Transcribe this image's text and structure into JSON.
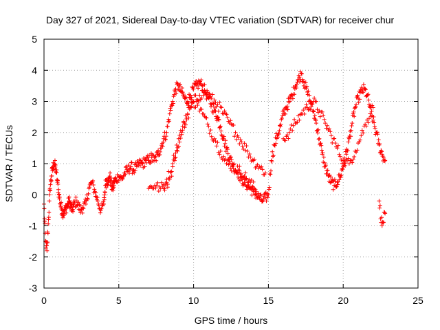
{
  "chart_data": {
    "type": "scatter",
    "title": "Day 327 of 2021, Sidereal Day-to-day VTEC variation (SDTVAR) for receiver chur",
    "xlabel": "GPS time / hours",
    "ylabel": "SDTVAR / TECUs",
    "xlim": [
      0,
      25
    ],
    "ylim": [
      -3,
      5
    ],
    "xticks": [
      0,
      5,
      10,
      15,
      20,
      25
    ],
    "yticks": [
      -3,
      -2,
      -1,
      0,
      1,
      2,
      3,
      4,
      5
    ],
    "grid": true,
    "marker": "+",
    "color": "#ff0000",
    "series": [
      {
        "name": "SDTVAR",
        "branches": [
          {
            "x": [
              0.0,
              0.1,
              0.2,
              0.3,
              0.4,
              0.5,
              0.6,
              0.7,
              0.8,
              0.9,
              1.0,
              1.1,
              1.2,
              1.3,
              1.4,
              1.5,
              1.6,
              1.7,
              1.8,
              1.9,
              2.0,
              2.2,
              2.4,
              2.6,
              2.8,
              3.0,
              3.2,
              3.4,
              3.6,
              3.8,
              4.0,
              4.1,
              4.2,
              4.3,
              4.4,
              4.5,
              4.6,
              4.7,
              4.8,
              5.0,
              5.2,
              5.4,
              5.6,
              5.8,
              6.0,
              6.2,
              6.4,
              6.6,
              6.8,
              7.0,
              7.2,
              7.4,
              7.6,
              7.8,
              8.0,
              8.2,
              8.4,
              8.6,
              8.8,
              9.0,
              9.2,
              9.4,
              9.6,
              9.8,
              10.0,
              10.2,
              10.4,
              10.6,
              10.8,
              11.0,
              11.2,
              11.4,
              11.6,
              11.8,
              12.0,
              12.2,
              12.4,
              12.6,
              12.8,
              13.0,
              13.2,
              13.4,
              13.6,
              13.8,
              14.0,
              14.2,
              14.4,
              14.6,
              14.8,
              15.0,
              15.2,
              15.4,
              15.6,
              15.8,
              16.0,
              16.2,
              16.4,
              16.6,
              16.8,
              17.0,
              17.2,
              17.4,
              17.6,
              17.8,
              18.0,
              18.2,
              18.4,
              18.6,
              18.8,
              19.0,
              19.2,
              19.4,
              19.6,
              19.8,
              20.0,
              20.2,
              20.4,
              20.6,
              20.8,
              21.0,
              21.2,
              21.4,
              21.6,
              21.8,
              22.0,
              22.2,
              22.4,
              22.6,
              22.8
            ],
            "y": [
              -0.3,
              -1.5,
              -1.8,
              -0.8,
              0.2,
              0.6,
              0.9,
              1.0,
              0.8,
              0.4,
              0.0,
              -0.3,
              -0.5,
              -0.6,
              -0.5,
              -0.4,
              -0.3,
              -0.2,
              -0.4,
              -0.5,
              -0.3,
              -0.2,
              -0.5,
              -0.4,
              -0.3,
              0.2,
              0.4,
              0.1,
              -0.2,
              -0.5,
              -0.3,
              0.3,
              0.5,
              0.4,
              0.6,
              0.3,
              0.2,
              0.4,
              0.5,
              0.6,
              0.5,
              0.7,
              0.8,
              0.9,
              0.8,
              0.9,
              1.0,
              1.0,
              1.1,
              1.1,
              1.2,
              1.1,
              1.3,
              1.5,
              1.8,
              2.0,
              2.6,
              3.0,
              3.4,
              3.5,
              3.3,
              3.1,
              3.0,
              3.2,
              3.4,
              3.5,
              3.6,
              3.5,
              3.3,
              3.1,
              2.9,
              2.7,
              2.5,
              2.2,
              1.8,
              1.5,
              1.2,
              1.0,
              0.8,
              0.7,
              0.5,
              0.4,
              0.3,
              0.2,
              0.1,
              0.0,
              -0.1,
              -0.2,
              -0.1,
              0.0,
              1.1,
              1.6,
              1.9,
              2.2,
              2.6,
              2.8,
              3.0,
              3.2,
              3.5,
              3.7,
              3.9,
              3.6,
              3.3,
              3.0,
              2.7,
              2.3,
              1.8,
              1.3,
              0.9,
              0.6,
              0.4,
              0.3,
              0.4,
              0.6,
              0.9,
              1.3,
              1.8,
              2.3,
              2.8,
              3.1,
              3.3,
              3.4,
              3.2,
              2.8,
              2.4,
              2.0,
              1.6,
              1.3,
              1.1
            ]
          },
          {
            "x": [
              8.0,
              8.4,
              8.8,
              9.2,
              9.6,
              10.0,
              10.4,
              10.8,
              11.2,
              11.6,
              12.0,
              12.4,
              12.8,
              13.2,
              13.6,
              14.0,
              14.4,
              14.8
            ],
            "y": [
              0.2,
              0.5,
              1.2,
              2.0,
              2.6,
              3.0,
              3.2,
              3.3,
              3.1,
              2.9,
              2.6,
              2.3,
              2.0,
              1.7,
              1.4,
              1.1,
              0.9,
              0.7
            ]
          },
          {
            "x": [
              7.0,
              7.4,
              7.8,
              8.2,
              8.6,
              9.0,
              9.4,
              9.8,
              10.2,
              10.6,
              11.0,
              11.4,
              11.8,
              12.2,
              12.6,
              13.0,
              13.4,
              13.8,
              14.2
            ],
            "y": [
              0.2,
              0.3,
              0.2,
              0.4,
              1.0,
              1.8,
              2.3,
              2.8,
              3.0,
              2.6,
              2.2,
              1.8,
              1.4,
              1.0,
              0.9,
              0.8,
              0.6,
              0.4,
              0.1
            ]
          },
          {
            "x": [
              16.0,
              16.4,
              16.8,
              17.2,
              17.6,
              18.0,
              18.4,
              18.8,
              19.2,
              19.6,
              20.0,
              20.4,
              20.8,
              21.2,
              21.6,
              22.0
            ],
            "y": [
              1.8,
              2.0,
              2.3,
              2.6,
              2.8,
              3.0,
              2.7,
              2.3,
              1.9,
              1.5,
              1.1,
              1.0,
              1.4,
              1.9,
              2.4,
              2.8
            ]
          },
          {
            "x": [
              22.4,
              22.6,
              22.8
            ],
            "y": [
              -0.2,
              -1.0,
              -0.6
            ]
          }
        ]
      }
    ]
  }
}
